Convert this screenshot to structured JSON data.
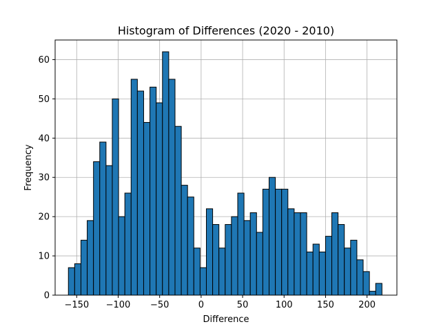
{
  "chart_data": {
    "type": "bar",
    "title": "Histogram of Differences (2020 - 2010)",
    "xlabel": "Difference",
    "ylabel": "Frequency",
    "xlim": [
      -176,
      236
    ],
    "ylim": [
      0,
      65
    ],
    "grid": true,
    "x_ticks": [
      -150,
      -100,
      -50,
      0,
      50,
      100,
      150,
      200
    ],
    "x_tick_labels": [
      "−150",
      "−100",
      "−50",
      "0",
      "50",
      "100",
      "150",
      "200"
    ],
    "y_ticks": [
      0,
      10,
      20,
      30,
      40,
      50,
      60
    ],
    "y_tick_labels": [
      "0",
      "10",
      "20",
      "30",
      "40",
      "50",
      "60"
    ],
    "bin_start": -160,
    "bin_width": 7.56,
    "values": [
      7,
      8,
      14,
      19,
      34,
      39,
      33,
      50,
      20,
      26,
      55,
      52,
      44,
      53,
      49,
      62,
      55,
      43,
      28,
      25,
      12,
      7,
      22,
      18,
      12,
      18,
      20,
      26,
      19,
      21,
      16,
      27,
      30,
      27,
      27,
      22,
      21,
      21,
      11,
      13,
      11,
      15,
      21,
      18,
      12,
      14,
      9,
      6,
      1,
      3
    ],
    "bar_color": "#1f77b4",
    "edge_color": "#000000"
  }
}
